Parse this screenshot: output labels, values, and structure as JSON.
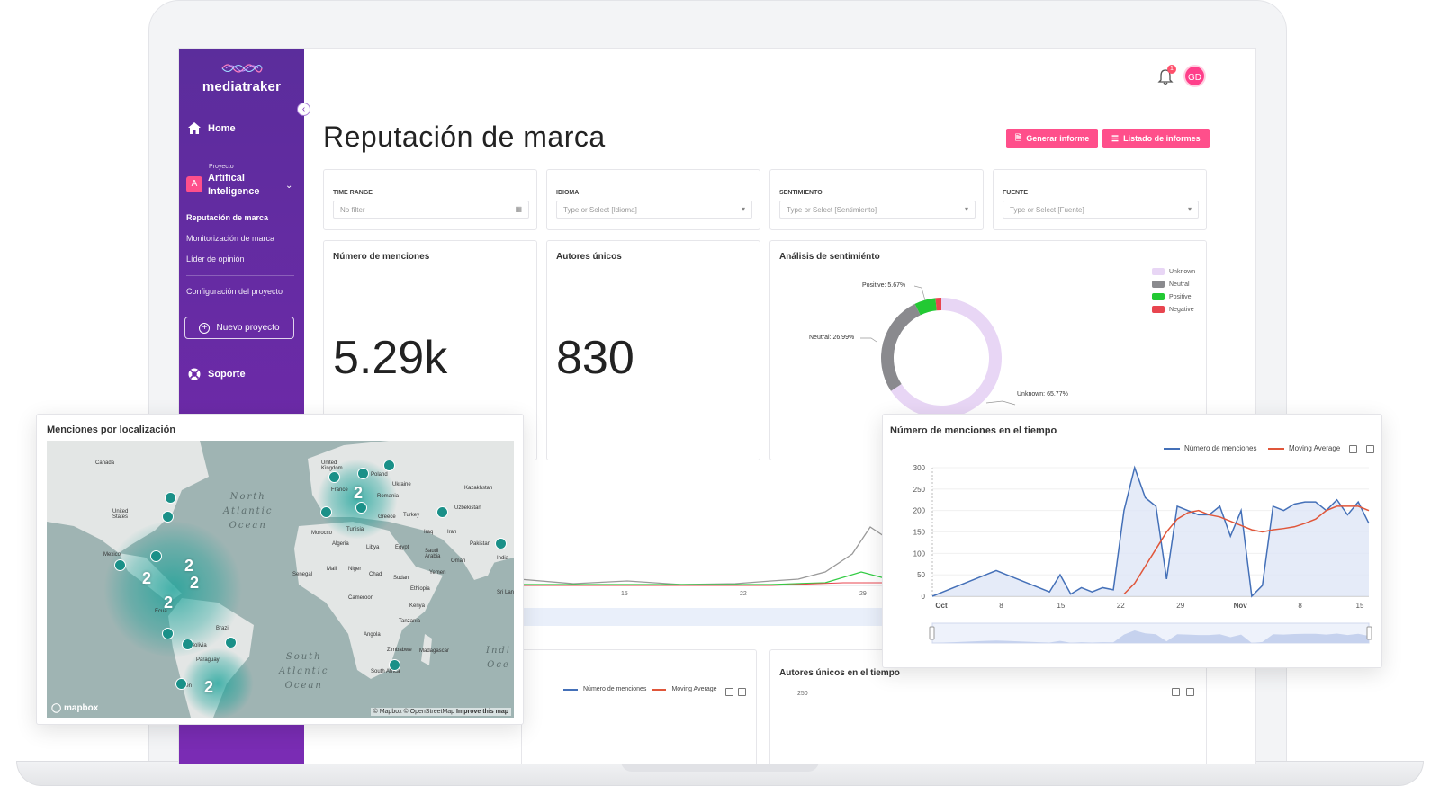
{
  "app": {
    "logo_text": "mediatraker",
    "page_title": "Reputación de marca"
  },
  "sidebar": {
    "home": "Home",
    "project_small": "Proyecto",
    "project_badge": "A",
    "project_name": "Artifical Inteligence",
    "items": [
      {
        "label": "Reputación de marca",
        "active": true
      },
      {
        "label": "Monitorización de marca"
      },
      {
        "label": "Líder de opinión"
      },
      {
        "label": "Configuración del proyecto"
      }
    ],
    "new_project": "Nuevo proyecto",
    "support": "Soporte"
  },
  "topbar": {
    "notification_count": "1",
    "avatar_initials": "GD"
  },
  "actions": {
    "generate": "Generar informe",
    "list": "Listado de informes"
  },
  "filters": [
    {
      "label": "TIME RANGE",
      "placeholder": "No filter",
      "icon": "calendar-icon"
    },
    {
      "label": "IDIOMA",
      "placeholder": "Type or Select [Idioma]",
      "icon": "chevron-down-icon"
    },
    {
      "label": "SENTIMIENTO",
      "placeholder": "Type or Select [Sentimiento]",
      "icon": "chevron-down-icon"
    },
    {
      "label": "FUENTE",
      "placeholder": "Type or Select [Fuente]",
      "icon": "chevron-down-icon"
    }
  ],
  "kpis": {
    "mentions_title": "Número de menciones",
    "mentions_value": "5.29k",
    "authors_title": "Autores únicos",
    "authors_value": "830"
  },
  "sentiment": {
    "title": "Análisis de sentimiénto",
    "legend": [
      {
        "name": "Unknown",
        "color": "#e8d6f5"
      },
      {
        "name": "Neutral",
        "color": "#8a8a8e"
      },
      {
        "name": "Positive",
        "color": "#22c933"
      },
      {
        "name": "Negative",
        "color": "#e8454f"
      }
    ],
    "labels": {
      "positive": "Positive: 5.67%",
      "neutral": "Neutral: 26.99%",
      "unknown": "Unknown: 65.77%"
    },
    "chart_data": {
      "type": "pie",
      "categories": [
        "Unknown",
        "Neutral",
        "Positive",
        "Negative"
      ],
      "values": [
        65.77,
        26.99,
        5.67,
        1.57
      ]
    }
  },
  "background_chart": {
    "x_ticks": [
      "15",
      "22",
      "29"
    ]
  },
  "bottom": {
    "left_legend_1": "Número de menciones",
    "left_legend_2": "Moving Average",
    "right_title": "Autores únicos en el tiempo",
    "right_tick": "250"
  },
  "map_card": {
    "title": "Menciones por localización",
    "oceans": [
      "North\nAtlantic\nOcean",
      "South\nAtlantic\nOcean",
      "Indi\nOce"
    ],
    "labels": [
      "Canada",
      "United\nStates",
      "Mexico",
      "United\nKingdom",
      "Poland",
      "Ukraine",
      "France",
      "Romania",
      "Greece",
      "Turkey",
      "Kazakhstan",
      "Uzbekistan",
      "Morocco",
      "Algeria",
      "Tunisia",
      "Libya",
      "Egypt",
      "Iraq",
      "Iran",
      "Pakistan",
      "India",
      "Saudi\nArabia",
      "Oman",
      "Yemen",
      "Mali",
      "Niger",
      "Chad",
      "Sudan",
      "Senegal",
      "Ethiopia",
      "Cameroon",
      "Kenya",
      "Tanzania",
      "Angola",
      "Zimbabwe",
      "Madagascar",
      "South Africa",
      "Brazil",
      "Bolivia",
      "Paraguay",
      "Sri Lan",
      "Ecua",
      "Argen"
    ],
    "clusters": [
      "2",
      "2",
      "2",
      "2",
      "2",
      "2"
    ],
    "mapbox": "mapbox",
    "attribution_1": "© Mapbox © OpenStreetMap",
    "attribution_2": "Improve this map"
  },
  "time_card": {
    "title": "Número de menciones en el tiempo",
    "legend": [
      {
        "name": "Número de menciones",
        "color": "#4470b8"
      },
      {
        "name": "Moving Average",
        "color": "#e0563a"
      }
    ],
    "chart_data": {
      "type": "area",
      "ylim": [
        0,
        300
      ],
      "y_ticks": [
        0,
        50,
        100,
        150,
        200,
        250,
        300
      ],
      "x_tick_labels": [
        "Oct",
        "8",
        "15",
        "22",
        "29",
        "Nov",
        "8",
        "15"
      ],
      "series": [
        {
          "name": "Número de menciones",
          "values": [
            0,
            10,
            20,
            30,
            40,
            50,
            60,
            50,
            40,
            30,
            20,
            10,
            50,
            5,
            20,
            10,
            20,
            15,
            200,
            300,
            230,
            210,
            40,
            210,
            200,
            190,
            190,
            210,
            140,
            200,
            0,
            25,
            210,
            200,
            215,
            220,
            220,
            200,
            225,
            190,
            220,
            170
          ]
        },
        {
          "name": "Moving Average",
          "values": [
            null,
            null,
            null,
            null,
            null,
            null,
            null,
            null,
            null,
            null,
            null,
            null,
            null,
            null,
            null,
            null,
            null,
            null,
            5,
            30,
            70,
            110,
            150,
            180,
            195,
            200,
            190,
            185,
            175,
            165,
            155,
            150,
            155,
            158,
            162,
            170,
            180,
            200,
            210,
            210,
            210,
            200
          ]
        }
      ]
    }
  }
}
